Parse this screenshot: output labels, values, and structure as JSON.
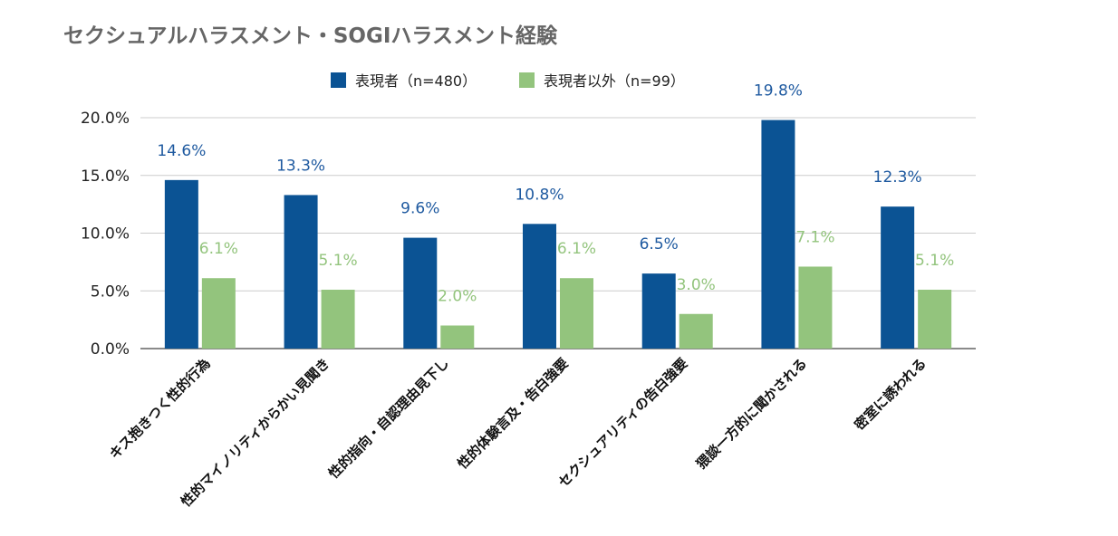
{
  "chart_data": {
    "type": "bar",
    "title": "セクシュアルハラスメント・SOGIハラスメント経験",
    "xlabel": "",
    "ylabel": "",
    "ylim": [
      0,
      20
    ],
    "yticks": [
      0,
      5,
      10,
      15,
      20
    ],
    "ytick_labels": [
      "0.0%",
      "5.0%",
      "10.0%",
      "15.0%",
      "20.0%"
    ],
    "grid": true,
    "legend_position": "top-center",
    "categories": [
      "キス抱きつく性的行為",
      "性的マイノリティからかい見聞き",
      "性的指向・自認理由見下し",
      "性的体験言及・告白強要",
      "セクシュアリティの告白強要",
      "猥談一方的に聞かされる",
      "密室に誘われる"
    ],
    "series": [
      {
        "name": "表現者（n=480）",
        "color": "#0b5394",
        "values": [
          14.6,
          13.3,
          9.6,
          10.8,
          6.5,
          19.8,
          12.3
        ],
        "labels": [
          "14.6%",
          "13.3%",
          "9.6%",
          "10.8%",
          "6.5%",
          "19.8%",
          "12.3%"
        ]
      },
      {
        "name": "表現者以外（n=99）",
        "color": "#93c47d",
        "values": [
          6.1,
          5.1,
          2.0,
          6.1,
          3.0,
          7.1,
          5.1
        ],
        "labels": [
          "6.1%",
          "5.1%",
          "2.0%",
          "6.1%",
          "3.0%",
          "7.1%",
          "5.1%"
        ]
      }
    ]
  }
}
